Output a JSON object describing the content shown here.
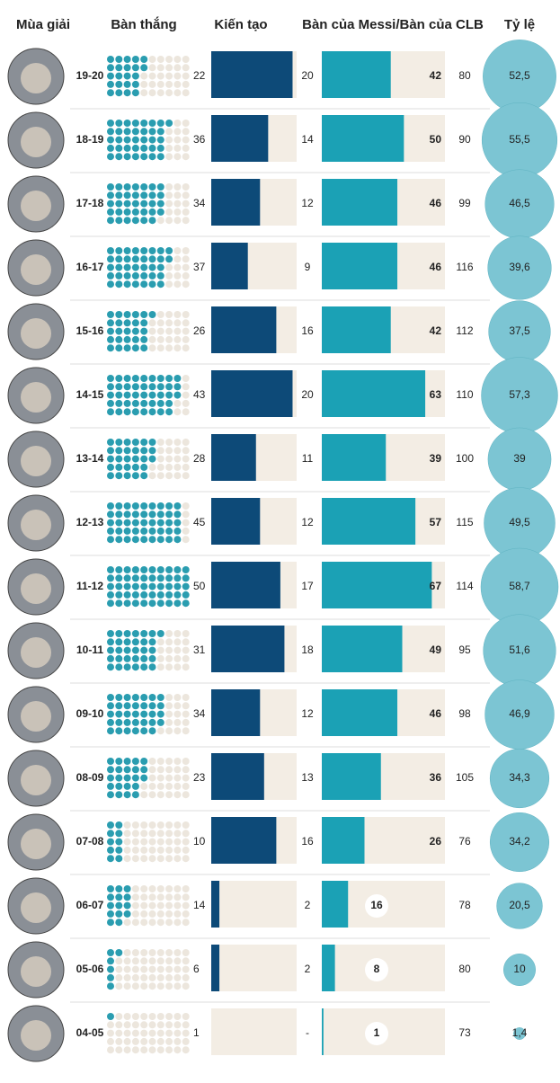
{
  "chart_data": {
    "type": "season-table",
    "header": "Mùa giải",
    "categories": [
      "19-20",
      "18-19",
      "17-18",
      "16-17",
      "15-16",
      "14-15",
      "13-14",
      "12-13",
      "11-12",
      "10-11",
      "09-10",
      "08-09",
      "07-08",
      "06-07",
      "05-06",
      "04-05"
    ],
    "series": [
      {
        "name": "Bàn thắng",
        "color": "#2a9db0",
        "xlim": [
          0,
          50
        ],
        "values": [
          22,
          36,
          34,
          37,
          26,
          43,
          28,
          45,
          50,
          31,
          34,
          23,
          10,
          14,
          6,
          1
        ]
      },
      {
        "name": "Kiến tạo",
        "color": "#0d4a78",
        "xlim": [
          0,
          21
        ],
        "values": [
          20,
          14,
          12,
          9,
          16,
          20,
          11,
          12,
          17,
          18,
          12,
          13,
          16,
          2,
          2,
          null
        ],
        "value_labels": [
          "20",
          "14",
          "12",
          "9",
          "16",
          "20",
          "11",
          "12",
          "17",
          "18",
          "12",
          "13",
          "16",
          "2",
          "2",
          "-"
        ]
      },
      {
        "name": "Bàn của Messi/Bàn của CLB",
        "color": "#1ba1b5",
        "xlim": [
          0,
          75
        ],
        "values": [
          42,
          50,
          46,
          46,
          42,
          63,
          39,
          57,
          67,
          49,
          46,
          36,
          26,
          16,
          8,
          1
        ],
        "totals": [
          80,
          90,
          99,
          116,
          112,
          110,
          100,
          115,
          114,
          95,
          98,
          105,
          76,
          78,
          80,
          73
        ]
      },
      {
        "name": "Tỷ lệ",
        "color": "#7cc5d3",
        "values": [
          52.5,
          55.5,
          46.5,
          39.6,
          37.5,
          57.3,
          39,
          49.5,
          58.7,
          51.6,
          46.9,
          34.3,
          34.2,
          20.5,
          10,
          1.4
        ],
        "value_labels": [
          "52,5",
          "55,5",
          "46,5",
          "39,6",
          "37,5",
          "57,3",
          "39",
          "49,5",
          "58,7",
          "51,6",
          "46,9",
          "34,3",
          "34,2",
          "20,5",
          "10",
          "1,4"
        ]
      }
    ]
  }
}
